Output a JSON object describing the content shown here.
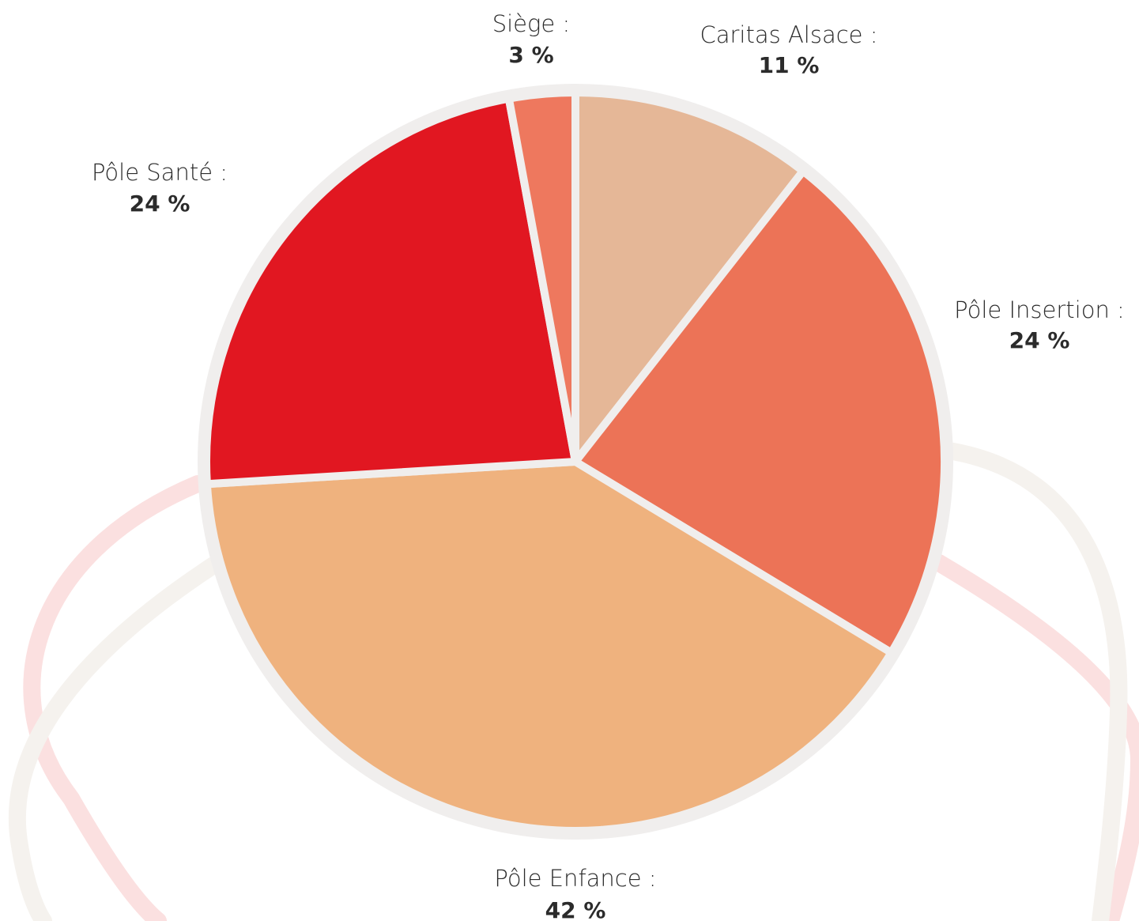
{
  "chart_data": {
    "type": "pie",
    "title": "",
    "unit": "%",
    "start": "top, clockwise",
    "slices": [
      {
        "label": "Caritas Alsace :",
        "value": 11,
        "value_text": "11 %",
        "color": "#e5b797"
      },
      {
        "label": "Pôle Insertion :",
        "value": 24,
        "value_text": "24 %",
        "color": "#ec7357"
      },
      {
        "label": "Pôle Enfance :",
        "value": 42,
        "value_text": "42 %",
        "color": "#efb27e"
      },
      {
        "label": "Pôle Santé :",
        "value": 24,
        "value_text": "24 %",
        "color": "#e11721"
      },
      {
        "label": "Siège :",
        "value": 3,
        "value_text": "3 %",
        "color": "#ee785e"
      }
    ],
    "border_color": "#f0eeed",
    "background_curve_colors": [
      "#fbe0e0",
      "#f5f2ee"
    ]
  }
}
